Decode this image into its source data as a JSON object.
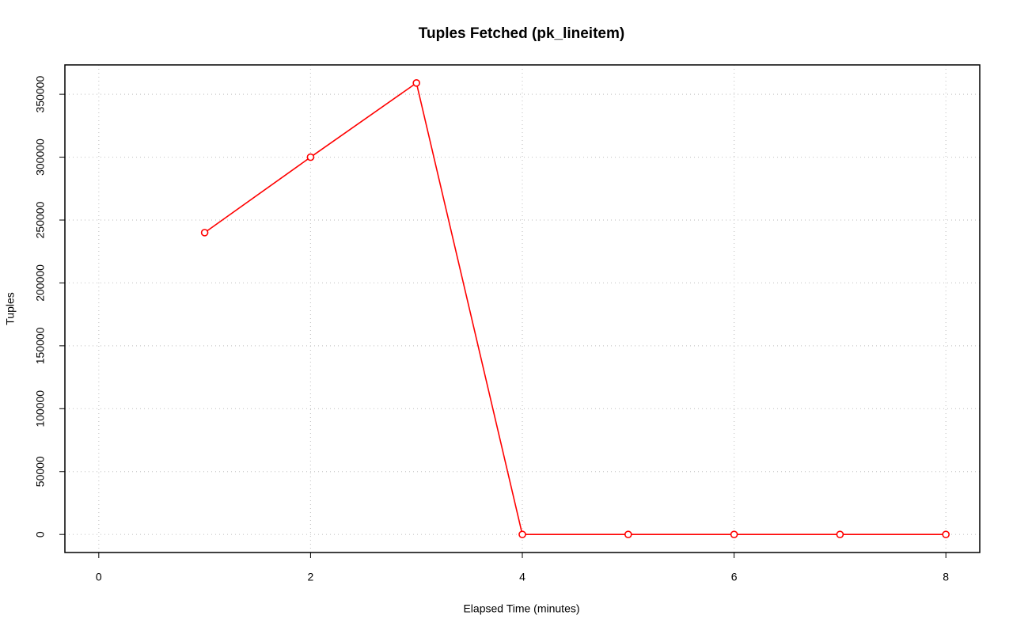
{
  "chart_data": {
    "type": "line",
    "title": "Tuples Fetched (pk_lineitem)",
    "x_label": "Elapsed Time (minutes)",
    "y_label": "Tuples",
    "x": [
      1,
      2,
      3,
      4,
      5,
      6,
      7,
      8
    ],
    "series": [
      {
        "name": "pk_lineitem",
        "color": "#ff0000",
        "values": [
          240000,
          300000,
          359000,
          0,
          0,
          0,
          0,
          0
        ]
      }
    ],
    "xlim": [
      -0.32,
      8.32
    ],
    "xticks": [
      0,
      2,
      4,
      6,
      8
    ],
    "ylim": [
      -14360,
      373360
    ],
    "yticks": [
      0,
      50000,
      100000,
      150000,
      200000,
      250000,
      300000,
      350000
    ],
    "grid": true
  }
}
